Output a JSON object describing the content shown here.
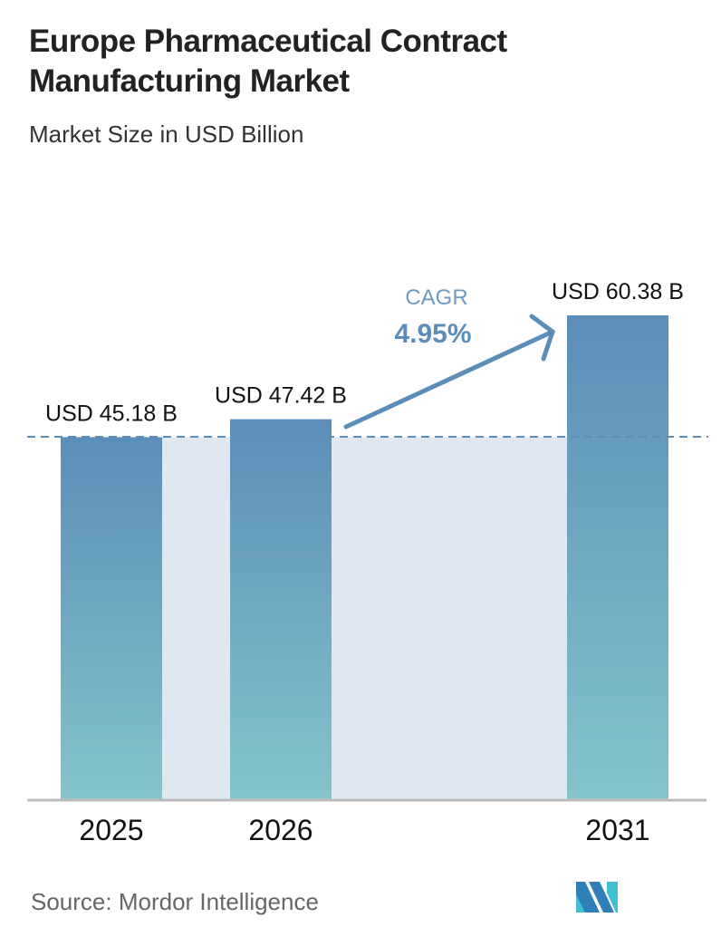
{
  "title": "Europe Pharmaceutical Contract Manufacturing Market",
  "subtitle": "Market Size in USD Billion",
  "source": "Source: Mordor Intelligence",
  "logo_text": "MI",
  "chart_data": {
    "type": "bar",
    "categories": [
      "2025",
      "2026",
      "2031"
    ],
    "values": [
      45.18,
      47.42,
      60.38
    ],
    "data_labels": [
      "USD 45.18 B",
      "USD 47.42 B",
      "USD 60.38 B"
    ],
    "annotation": {
      "label": "CAGR",
      "value": "4.95%"
    },
    "ylim": [
      0,
      60.38
    ],
    "grid": false,
    "colors": {
      "bar_top": "#5b8db8",
      "bar_bottom": "#84c4c9",
      "band": "#dfe8f0",
      "cagr": "#5b8db8",
      "reference_line": "#5b8db8"
    }
  }
}
